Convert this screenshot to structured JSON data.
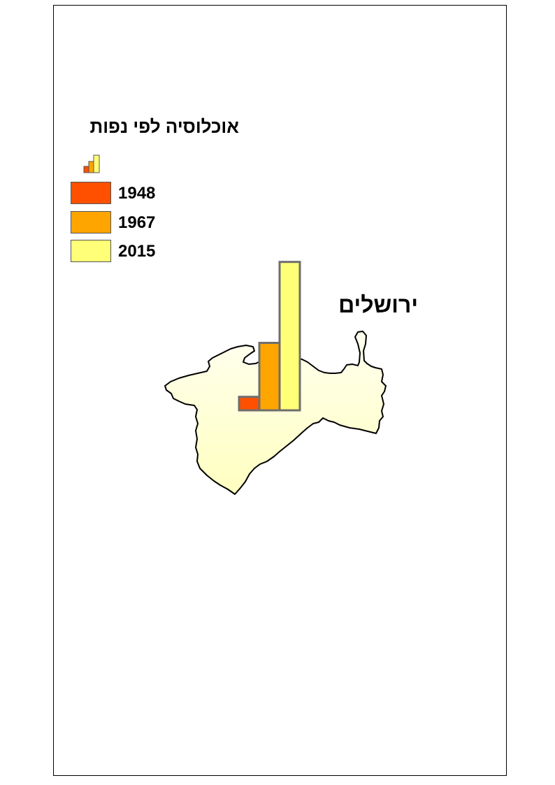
{
  "legend": {
    "title": "אוכלוסיה לפי נפות",
    "items": [
      {
        "year": "1948",
        "color": "#ff5000"
      },
      {
        "year": "1967",
        "color": "#ffa500"
      },
      {
        "year": "2015",
        "color": "#ffff78"
      }
    ]
  },
  "map": {
    "district_label": "ירושלים",
    "district_fill_top": "#fffff0",
    "district_fill_bottom": "#ffffc0"
  },
  "chart_data": {
    "type": "bar",
    "categories": [
      "1948",
      "1967",
      "2015"
    ],
    "values": [
      1,
      5,
      11
    ]
  }
}
